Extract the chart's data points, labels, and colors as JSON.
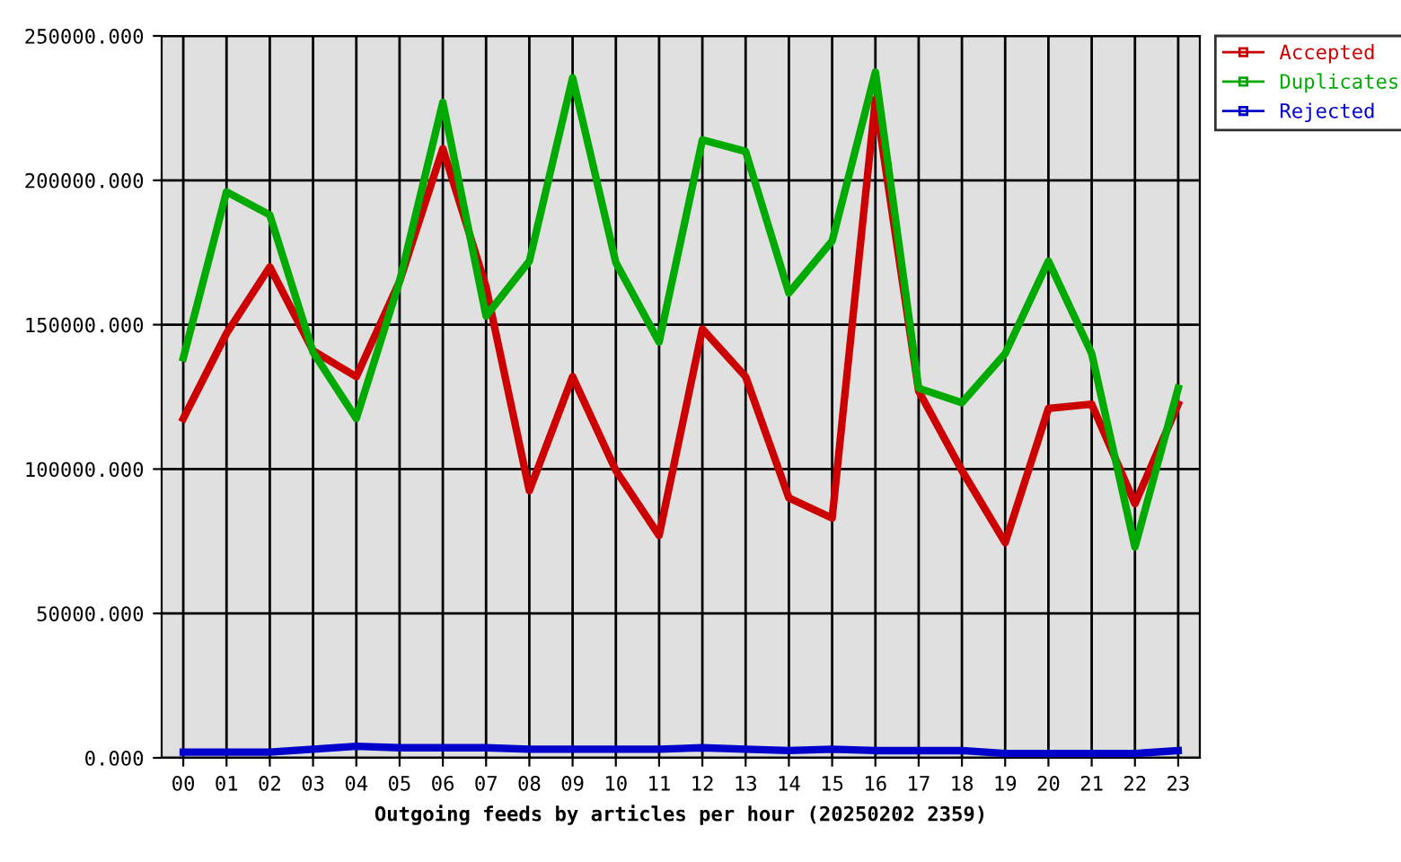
{
  "chart_data": {
    "type": "line",
    "xlabel": "Outgoing feeds by articles per hour (20250202 2359)",
    "categories": [
      "00",
      "01",
      "02",
      "03",
      "04",
      "05",
      "06",
      "07",
      "08",
      "09",
      "10",
      "11",
      "12",
      "13",
      "14",
      "15",
      "16",
      "17",
      "18",
      "19",
      "20",
      "21",
      "22",
      "23"
    ],
    "series": [
      {
        "name": "Accepted",
        "color": "#cc0000",
        "values": [
          117500,
          147000,
          170000,
          141000,
          132000,
          165000,
          211000,
          163000,
          92500,
          132000,
          99500,
          77000,
          148500,
          132000,
          90000,
          83000,
          228000,
          127000,
          99500,
          74500,
          121000,
          122500,
          88000,
          122500
        ]
      },
      {
        "name": "Duplicates",
        "color": "#00aa00",
        "values": [
          138500,
          196000,
          188000,
          140500,
          117500,
          165000,
          227000,
          153000,
          172000,
          235500,
          171500,
          144000,
          214000,
          210000,
          161000,
          179000,
          237500,
          128000,
          123000,
          140000,
          172000,
          140000,
          73000,
          128000
        ]
      },
      {
        "name": "Rejected",
        "color": "#0000cc",
        "values": [
          2000,
          2000,
          2000,
          3000,
          4000,
          3500,
          3500,
          3500,
          3000,
          3000,
          3000,
          3000,
          3500,
          3000,
          2500,
          3000,
          2500,
          2500,
          2500,
          1500,
          1500,
          1500,
          1500,
          2500
        ]
      }
    ],
    "ylim": [
      0,
      250000
    ],
    "yticks": [
      {
        "value": 0,
        "label": "0.000"
      },
      {
        "value": 50000,
        "label": "50000.000"
      },
      {
        "value": 100000,
        "label": "100000.000"
      },
      {
        "value": 150000,
        "label": "150000.000"
      },
      {
        "value": 200000,
        "label": "200000.000"
      },
      {
        "value": 250000,
        "label": "250000.000"
      }
    ],
    "grid": true,
    "legend": "top right",
    "line_style": "solid"
  }
}
